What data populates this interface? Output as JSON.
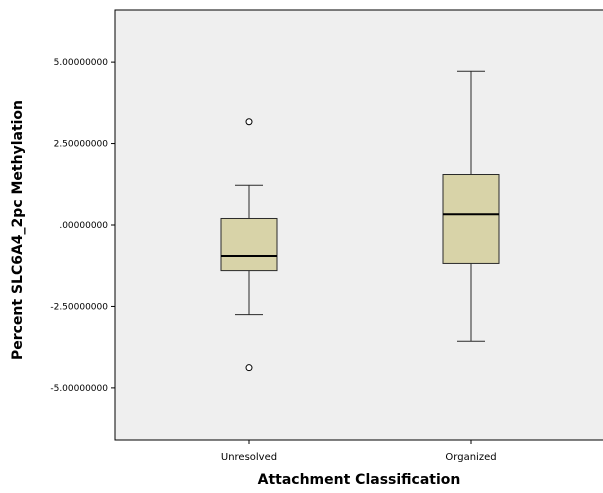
{
  "chart_data": {
    "type": "boxplot",
    "title": "",
    "xlabel": "Attachment Classification",
    "ylabel": "Percent SLC6A4_2pc Methylation",
    "ylim": [
      -6.6,
      6.6
    ],
    "yticks": [
      5,
      2.5,
      0,
      -2.5,
      -5
    ],
    "ytick_labels": [
      "5.00000000",
      "2.50000000",
      ".00000000",
      "-2.50000000",
      "-5.00000000"
    ],
    "grid": false,
    "categories": [
      "Unresolved",
      "Organized"
    ],
    "boxes": [
      {
        "category": "Unresolved",
        "whisker_low": -2.75,
        "q1": -1.4,
        "median": -0.95,
        "q3": 0.2,
        "whisker_high": 1.22,
        "outliers": [
          3.17,
          -4.38
        ]
      },
      {
        "category": "Organized",
        "whisker_low": -3.57,
        "q1": -1.18,
        "median": 0.33,
        "q3": 1.55,
        "whisker_high": 4.72,
        "outliers": []
      }
    ],
    "colors": {
      "plot_background": "#efefef",
      "box_fill": "#d8d3a8",
      "box_stroke": "#2a2a2a"
    }
  }
}
